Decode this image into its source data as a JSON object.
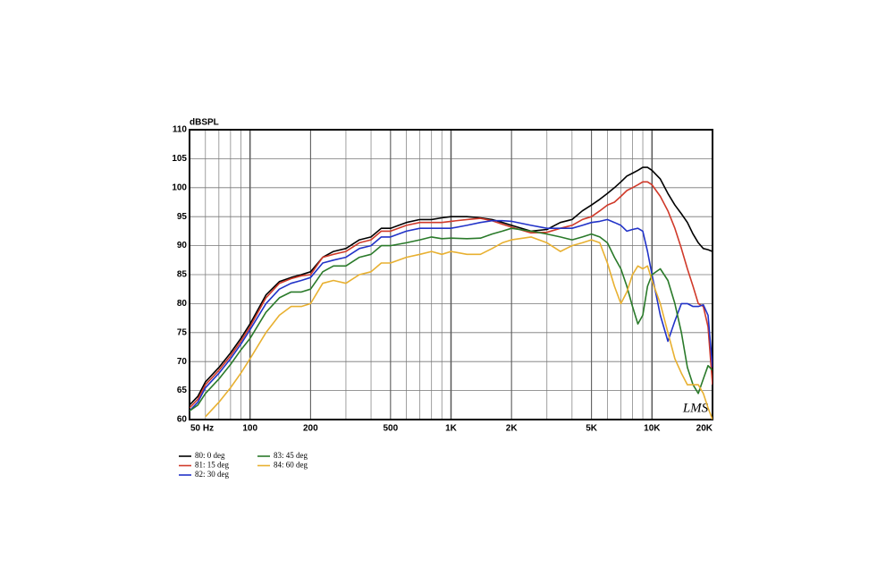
{
  "chart_data": {
    "type": "line",
    "y_label": "dBSPL",
    "watermark": "LMS",
    "xscale": "log",
    "grid": true,
    "minor_grid": true,
    "xlim": [
      50,
      20000
    ],
    "ylim": [
      60,
      110
    ],
    "xticks": [
      {
        "value": 50,
        "label": "50 Hz"
      },
      100,
      200,
      500,
      {
        "value": 1000,
        "label": "1K"
      },
      {
        "value": 2000,
        "label": "2K"
      },
      {
        "value": 5000,
        "label": "5K"
      },
      {
        "value": 10000,
        "label": "10K"
      },
      {
        "value": 20000,
        "label": "20K"
      }
    ],
    "yticks": [
      60,
      65,
      70,
      75,
      80,
      85,
      90,
      95,
      100,
      105,
      110
    ],
    "x": [
      50,
      55,
      60,
      70,
      80,
      90,
      100,
      120,
      140,
      160,
      180,
      200,
      230,
      260,
      300,
      350,
      400,
      450,
      500,
      600,
      700,
      800,
      900,
      1000,
      1200,
      1400,
      1600,
      1800,
      2000,
      2500,
      3000,
      3500,
      4000,
      4500,
      5000,
      5500,
      6000,
      6500,
      7000,
      7500,
      8000,
      8500,
      9000,
      9500,
      10000,
      11000,
      12000,
      13000,
      14000,
      15000,
      16000,
      17000,
      18000,
      19000,
      20000
    ],
    "series": [
      {
        "name": "80: 0 deg",
        "color": "#000000",
        "values": [
          62.5,
          64,
          66.5,
          69,
          71.5,
          74,
          76.5,
          81.5,
          83.8,
          84.5,
          85,
          85.5,
          88,
          89,
          89.5,
          91,
          91.5,
          93,
          93,
          94,
          94.5,
          94.5,
          94.8,
          95,
          95,
          94.8,
          94.5,
          94,
          93.5,
          92.5,
          92.8,
          94,
          94.5,
          96,
          97,
          98,
          99,
          100,
          101,
          102,
          102.5,
          103,
          103.5,
          103.5,
          103,
          101.5,
          99,
          97,
          95.5,
          94,
          92,
          90.5,
          89.5,
          89.3,
          89
        ]
      },
      {
        "name": "81: 15 deg",
        "color": "#d03a2a",
        "values": [
          62,
          63.5,
          66,
          68.5,
          71,
          73.5,
          76,
          81,
          83.5,
          84.3,
          84.8,
          85,
          88,
          88.5,
          89,
          90.5,
          91,
          92.5,
          92.5,
          93.5,
          94,
          94,
          94,
          94.2,
          94.5,
          94.7,
          94.3,
          93.7,
          93.2,
          92.2,
          92.3,
          93,
          93.5,
          94.5,
          95,
          96,
          97,
          97.5,
          98.5,
          99.5,
          100,
          100.5,
          101,
          101,
          100.5,
          98.5,
          96,
          93,
          89.5,
          86,
          83,
          80,
          79.5,
          76,
          66
        ]
      },
      {
        "name": "82: 30 deg",
        "color": "#2233c8",
        "values": [
          61.5,
          63,
          65.5,
          68,
          70.5,
          73,
          75.5,
          80,
          82.5,
          83.5,
          84,
          84.5,
          87,
          87.5,
          88,
          89.5,
          90,
          91.5,
          91.5,
          92.5,
          93,
          93,
          93,
          93,
          93.5,
          94,
          94.3,
          94.3,
          94.2,
          93.5,
          93,
          93,
          93,
          93.5,
          94,
          94.2,
          94.5,
          94,
          93.5,
          92.5,
          92.8,
          93,
          92.5,
          89,
          85,
          78,
          73.5,
          77,
          80,
          80,
          79.5,
          79.5,
          79.8,
          78,
          69
        ]
      },
      {
        "name": "83: 45 deg",
        "color": "#2a7a2a",
        "values": [
          61.5,
          62.5,
          64.5,
          67,
          69.5,
          72,
          74,
          78.5,
          81,
          82,
          82,
          82.5,
          85.5,
          86.5,
          86.5,
          88,
          88.5,
          90,
          90,
          90.5,
          91,
          91.5,
          91.2,
          91.3,
          91.2,
          91.3,
          92,
          92.5,
          93,
          92.5,
          92,
          91.5,
          91,
          91.5,
          92,
          91.5,
          90.5,
          88,
          86,
          83,
          79.5,
          76.5,
          78,
          83,
          85,
          86,
          84,
          80,
          75,
          69,
          66,
          64.5,
          67,
          69.3,
          68.5
        ]
      },
      {
        "name": "84: 60 deg",
        "color": "#e8b030",
        "values": [
          null,
          null,
          60.5,
          63,
          65.5,
          68,
          70.5,
          75,
          78,
          79.5,
          79.5,
          80,
          83.5,
          84,
          83.5,
          85,
          85.5,
          87,
          87,
          88,
          88.5,
          89,
          88.5,
          89,
          88.5,
          88.5,
          89.5,
          90.5,
          91,
          91.5,
          90.5,
          89,
          90,
          90.5,
          91,
          90.5,
          87,
          83,
          80,
          82,
          85,
          86.5,
          86,
          86.5,
          84,
          80,
          75,
          70.5,
          68,
          66,
          66,
          66,
          64.5,
          62,
          60
        ]
      }
    ]
  }
}
